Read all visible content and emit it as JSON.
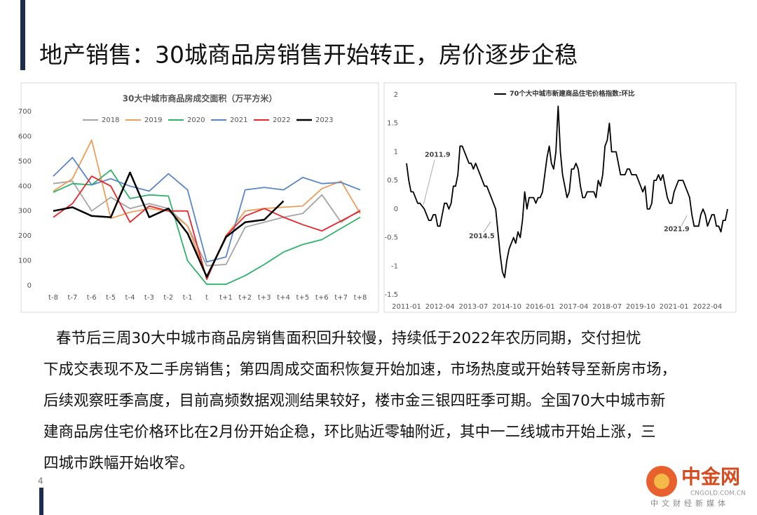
{
  "header": {
    "title": "地产销售：30城商品房销售开始转正，房价逐步企稳"
  },
  "chart_data": [
    {
      "type": "line",
      "title": "30大中城市商品房成交面积（万平方米）",
      "categories": [
        "t-8",
        "t-7",
        "t-6",
        "t-5",
        "t-4",
        "t-3",
        "t-2",
        "t-1",
        "t",
        "t+1",
        "t+2",
        "t+3",
        "t+4",
        "t+5",
        "t+6",
        "t+7",
        "t+8"
      ],
      "ylim": [
        0,
        700
      ],
      "yticks": [
        0,
        100,
        200,
        300,
        400,
        500,
        600,
        700
      ],
      "grid": false,
      "series": [
        {
          "name": "2018",
          "color": "#a5a5a5",
          "values": [
            410,
            420,
            300,
            355,
            310,
            330,
            310,
            240,
            80,
            85,
            235,
            255,
            275,
            290,
            365,
            255,
            305
          ]
        },
        {
          "name": "2019",
          "color": "#ed9e5b",
          "values": [
            380,
            430,
            585,
            270,
            295,
            310,
            300,
            240,
            35,
            200,
            300,
            310,
            315,
            320,
            390,
            420,
            290
          ]
        },
        {
          "name": "2020",
          "color": "#2fb36b",
          "values": [
            375,
            410,
            405,
            465,
            350,
            365,
            360,
            100,
            5,
            5,
            40,
            85,
            135,
            165,
            185,
            230,
            275
          ]
        },
        {
          "name": "2021",
          "color": "#5b86c5",
          "values": [
            440,
            515,
            405,
            430,
            400,
            380,
            450,
            385,
            95,
            115,
            385,
            395,
            385,
            435,
            410,
            415,
            385
          ]
        },
        {
          "name": "2022",
          "color": "#e8262b",
          "values": [
            275,
            330,
            440,
            400,
            255,
            320,
            300,
            300,
            25,
            200,
            280,
            310,
            275,
            245,
            220,
            260,
            300
          ]
        },
        {
          "name": "2023",
          "color": "#000000",
          "values": [
            300,
            315,
            280,
            275,
            455,
            275,
            310,
            210,
            35,
            195,
            255,
            265,
            340,
            null,
            null,
            null,
            null
          ]
        }
      ]
    },
    {
      "type": "line",
      "x": [
        "2011-01",
        "2011-02",
        "2011-03",
        "2011-04",
        "2011-05",
        "2011-06",
        "2011-07",
        "2011-08",
        "2011-09",
        "2011-10",
        "2011-11",
        "2011-12",
        "2012-01",
        "2012-02",
        "2012-03",
        "2012-04",
        "2012-05",
        "2012-06",
        "2012-07",
        "2012-08",
        "2012-09",
        "2012-10",
        "2012-11",
        "2012-12",
        "2013-01",
        "2013-02",
        "2013-03",
        "2013-04",
        "2013-05",
        "2013-06",
        "2013-07",
        "2013-08",
        "2013-09",
        "2013-10",
        "2013-11",
        "2013-12",
        "2014-01",
        "2014-02",
        "2014-03",
        "2014-04",
        "2014-05",
        "2014-06",
        "2014-07",
        "2014-08",
        "2014-09",
        "2014-10",
        "2014-11",
        "2014-12",
        "2015-01",
        "2015-02",
        "2015-03",
        "2015-04",
        "2015-05",
        "2015-06",
        "2015-07",
        "2015-08",
        "2015-09",
        "2015-10",
        "2015-11",
        "2015-12",
        "2016-01",
        "2016-02",
        "2016-03",
        "2016-04",
        "2016-05",
        "2016-06",
        "2016-07",
        "2016-08",
        "2016-09",
        "2016-10",
        "2016-11",
        "2016-12",
        "2017-01",
        "2017-02",
        "2017-03",
        "2017-04",
        "2017-05",
        "2017-06",
        "2017-07",
        "2017-08",
        "2017-09",
        "2017-10",
        "2017-11",
        "2017-12",
        "2018-01",
        "2018-02",
        "2018-03",
        "2018-04",
        "2018-05",
        "2018-06",
        "2018-07",
        "2018-08",
        "2018-09",
        "2018-10",
        "2018-11",
        "2018-12",
        "2019-01",
        "2019-02",
        "2019-03",
        "2019-04",
        "2019-05",
        "2019-06",
        "2019-07",
        "2019-08",
        "2019-09",
        "2019-10",
        "2019-11",
        "2019-12",
        "2020-01",
        "2020-02",
        "2020-03",
        "2020-04",
        "2020-05",
        "2020-06",
        "2020-07",
        "2020-08",
        "2020-09",
        "2020-10",
        "2020-11",
        "2020-12",
        "2021-01",
        "2021-02",
        "2021-03",
        "2021-04",
        "2021-05",
        "2021-06",
        "2021-07",
        "2021-08",
        "2021-09",
        "2021-10",
        "2021-11",
        "2021-12",
        "2022-01",
        "2022-02",
        "2022-03",
        "2022-04",
        "2022-05",
        "2022-06",
        "2022-07",
        "2022-08",
        "2022-09",
        "2022-10",
        "2022-11",
        "2022-12",
        "2023-01"
      ],
      "xticks": [
        "2011-01",
        "2012-04",
        "2013-07",
        "2014-10",
        "2016-01",
        "2017-04",
        "2018-07",
        "2019-10",
        "2021-01",
        "2022-04"
      ],
      "ylim": [
        -1.5,
        2
      ],
      "yticks": [
        -1.5,
        -1,
        -0.5,
        0,
        0.5,
        1,
        1.5,
        2
      ],
      "grid": false,
      "annotations": [
        "2011.9",
        "2014.5",
        "2021.9"
      ],
      "series": [
        {
          "name": "70个大中城市新建商品住宅价格指数:环比",
          "color": "#000000",
          "values": [
            0.8,
            0.5,
            0.3,
            0.3,
            0.2,
            0.1,
            0.1,
            0.05,
            0,
            -0.1,
            -0.2,
            -0.2,
            -0.1,
            -0.1,
            -0.3,
            -0.3,
            -0.1,
            0.1,
            0.1,
            0,
            0.1,
            0.4,
            0.4,
            0.6,
            1.1,
            1.1,
            1,
            0.9,
            0.8,
            0.8,
            0.7,
            0.8,
            0.7,
            0.6,
            0.5,
            0.4,
            0.4,
            0.3,
            0.2,
            0.1,
            0,
            -0.4,
            -0.8,
            -1.1,
            -1.2,
            -0.9,
            -0.7,
            -0.6,
            -0.5,
            -0.6,
            -0.4,
            -0.5,
            -0.2,
            0.3,
            0,
            0.2,
            0.2,
            0.2,
            0.1,
            0.2,
            0.2,
            0.3,
            0.6,
            0.9,
            1.1,
            0.8,
            0.7,
            1,
            1.8,
            1,
            0.6,
            0.4,
            0.2,
            0.3,
            0.7,
            0.7,
            0.8,
            0.7,
            0.4,
            0.2,
            0.2,
            0.3,
            0.3,
            0.3,
            0.3,
            0.2,
            0.5,
            0.4,
            0.6,
            1.1,
            1.2,
            1.5,
            1,
            1,
            1,
            0.8,
            0.6,
            0.6,
            0.6,
            0.7,
            0.7,
            0.6,
            0.6,
            0.6,
            0.5,
            0.4,
            0.3,
            0.4,
            0,
            0,
            0.1,
            0.5,
            0.5,
            0.6,
            0.5,
            0.6,
            0.4,
            0.2,
            0.1,
            0.1,
            0.3,
            0.4,
            0.5,
            0.5,
            0.5,
            0.4,
            0.3,
            0.2,
            -0.1,
            -0.3,
            -0.3,
            -0.3,
            -0.1,
            0,
            -0.1,
            -0.3,
            -0.2,
            -0.1,
            -0.1,
            -0.3,
            -0.3,
            -0.4,
            -0.2,
            -0.2,
            0
          ]
        }
      ]
    }
  ],
  "body": {
    "lines": [
      "春节后三周30大中城市商品房销售面积回升较慢，持续低于2022年农历同期，交付担忧",
      "下成交表现不及二手房销售；第四周成交面积恢复开始加速，市场热度或开始转导至新房市场，",
      "后续观察旺季高度，目前高频数据观测结果较好，楼市金三银四旺季可期。全国70大中城市新",
      "建商品房住宅价格环比在2月份开始企稳，环比贴近零轴附近，其中一二线城市开始上涨，三",
      "四城市跌幅开始收窄。"
    ]
  },
  "page_number": "4",
  "watermark": {
    "brand": "中金网",
    "domain": "CNGOLD.COM.CN",
    "slogan": "中文财经新媒体"
  }
}
